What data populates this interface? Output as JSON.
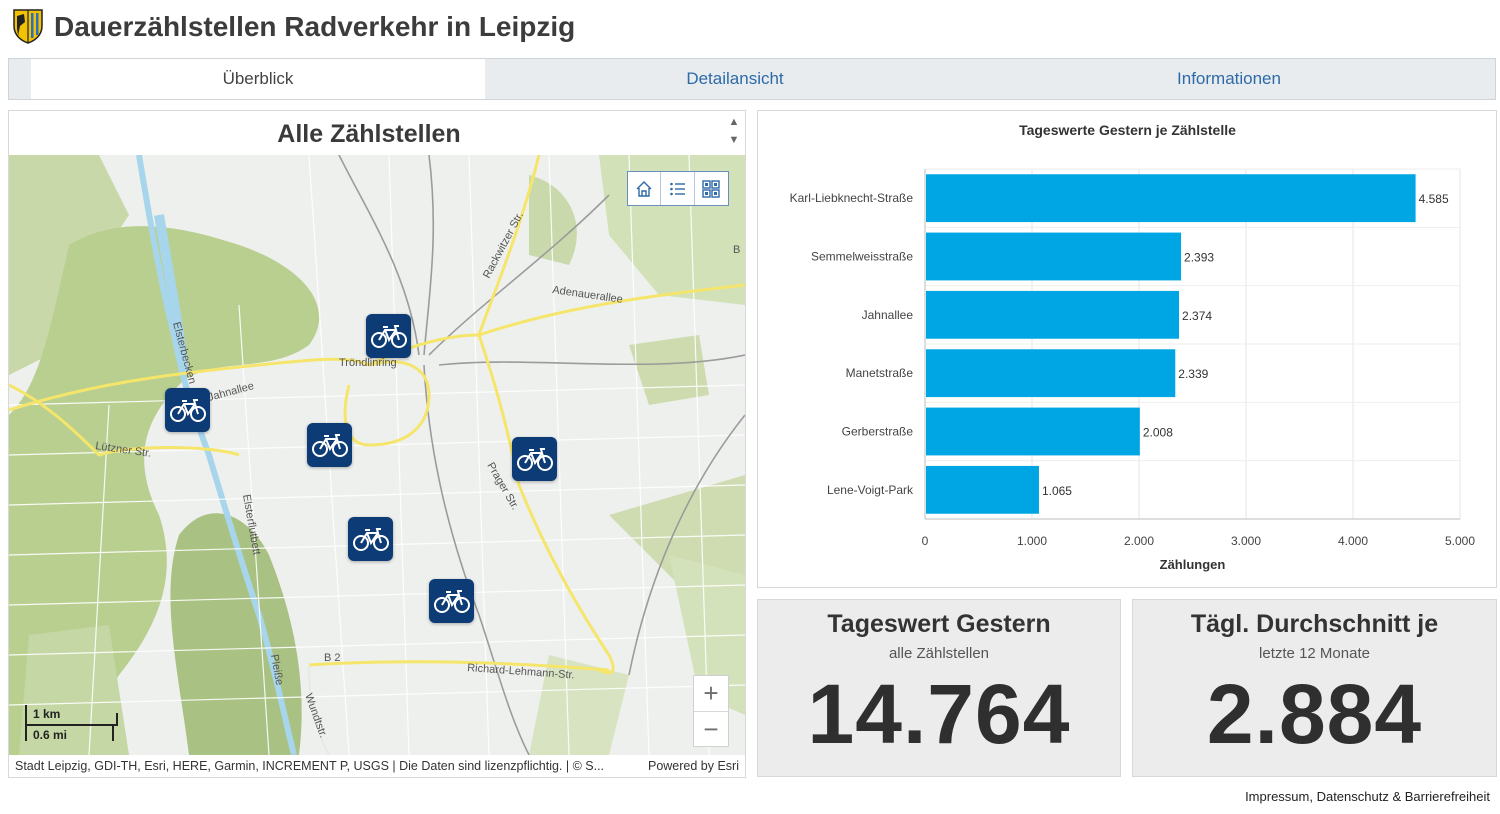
{
  "header": {
    "title": "Dauerzählstellen Radverkehr in Leipzig"
  },
  "tabs": [
    {
      "label": "Überblick",
      "active": true
    },
    {
      "label": "Detailansicht",
      "active": false
    },
    {
      "label": "Informationen",
      "active": false
    }
  ],
  "map": {
    "title": "Alle Zählstellen",
    "tools": [
      "home-icon",
      "legend-list-icon",
      "basemap-gallery-icon"
    ],
    "zoom_in": "+",
    "zoom_out": "−",
    "scale": {
      "km": "1 km",
      "mi": "0.6 mi"
    },
    "attribution": "Stadt Leipzig, GDI-TH, Esri, HERE, Garmin, INCREMENT P, USGS | Die Daten sind lizenzpflichtig. | © S...",
    "powered_by": "Powered by Esri",
    "street_labels": [
      "Jahnallee",
      "Lützner Str.",
      "Tröndlinring",
      "Adenauerallee",
      "Rackwitzer Str.",
      "Prager Str.",
      "Richard-Lehmann-Str.",
      "B 2",
      "Wundtstr.",
      "Elsterbecken",
      "Elsterflutbett",
      "Pleiße",
      "B"
    ],
    "marker_count": 6
  },
  "chart_data": {
    "type": "bar",
    "orientation": "horizontal",
    "title": "Tageswerte Gestern je Zählstelle",
    "categories": [
      "Karl-Liebknecht-Straße",
      "Semmelweisstraße",
      "Jahnallee",
      "Manetstraße",
      "Gerberstraße",
      "Lene-Voigt-Park"
    ],
    "values": [
      4585,
      2393,
      2374,
      2339,
      2008,
      1065
    ],
    "value_labels": [
      "4.585",
      "2.393",
      "2.374",
      "2.339",
      "2.008",
      "1.065"
    ],
    "xlabel": "Zählungen",
    "ylabel": "",
    "xlim": [
      0,
      5000
    ],
    "ticks": [
      0,
      1000,
      2000,
      3000,
      4000,
      5000
    ],
    "tick_labels": [
      "0",
      "1.000",
      "2.000",
      "3.000",
      "4.000",
      "5.000"
    ],
    "grid": true,
    "bar_color": "#00a5e3"
  },
  "kpis": [
    {
      "title": "Tageswert Gestern",
      "subtitle": "alle Zählstellen",
      "value": "14.764"
    },
    {
      "title": "Tägl. Durchschnitt je",
      "subtitle": "letzte 12 Monate",
      "value": "2.884"
    }
  ],
  "footer": {
    "link": "Impressum, Datenschutz & Barrierefreiheit"
  },
  "colors": {
    "accent": "#2d6aa7",
    "marker": "#0d3b75",
    "bar": "#00a5e3"
  }
}
